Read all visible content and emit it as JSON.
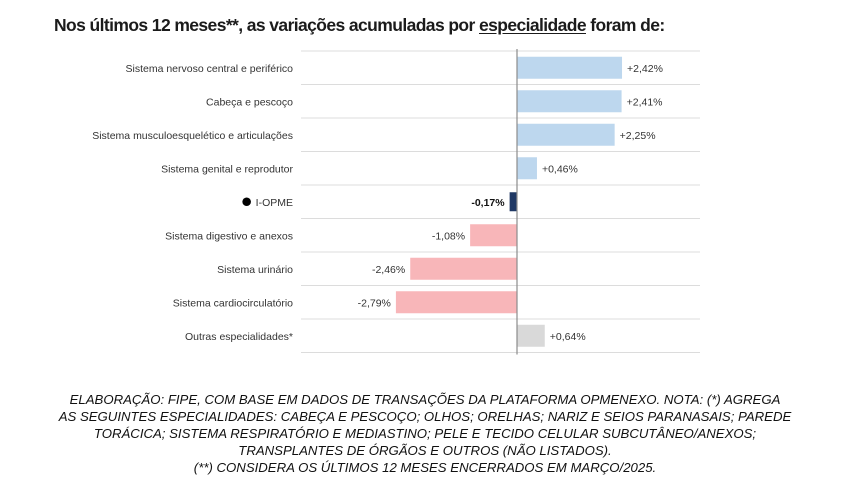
{
  "title": {
    "before": "Nos últimos 12 meses**, as variações acumuladas por ",
    "underlined": "especialidade",
    "after": " foram de:"
  },
  "colors": {
    "positive": "#bdd7ee",
    "negative": "#f8b6b9",
    "highlight": "#1f3864",
    "other": "#d9d9d9",
    "marker": "#000000",
    "axis": "#8c8c8c",
    "gridline": "#dcdcdc"
  },
  "chart_data": {
    "type": "bar",
    "orientation": "horizontal",
    "categories": [
      "Sistema nervoso central e periférico",
      "Cabeça e pescoço",
      "Sistema musculoesquelético e articulações",
      "Sistema genital e reprodutor",
      "I-OPME",
      "Sistema digestivo e anexos",
      "Sistema urinário",
      "Sistema cardiocirculatório",
      "Outras especialidades*"
    ],
    "values": [
      2.42,
      2.41,
      2.25,
      0.46,
      -0.17,
      -1.08,
      -2.46,
      -2.79,
      0.64
    ],
    "value_labels": [
      "+2,42%",
      "+2,41%",
      "+2,25%",
      "+0,46%",
      "-0,17%",
      "-1,08%",
      "-2,46%",
      "-2,79%",
      "+0,64%"
    ],
    "highlight": "I-OPME",
    "xlim": [
      -2.79,
      2.42
    ],
    "grid": true
  },
  "footnote": [
    "ELABORAÇÃO: FIPE, COM BASE EM DADOS DE TRANSAÇÕES DA PLATAFORMA OPMENEXO. NOTA: (*) AGREGA",
    "AS SEGUINTES ESPECIALIDADES: CABEÇA E PESCOÇO; OLHOS; ORELHAS; NARIZ E SEIOS PARANASAIS; PAREDE",
    "TORÁCICA; SISTEMA RESPIRATÓRIO E MEDIASTINO; PELE E TECIDO CELULAR SUBCUTÂNEO/ANEXOS;",
    "TRANSPLANTES DE ÓRGÃOS E OUTROS (NÃO LISTADOS).",
    "(**) CONSIDERA OS ÚLTIMOS 12 MESES ENCERRADOS EM MARÇO/2025."
  ]
}
